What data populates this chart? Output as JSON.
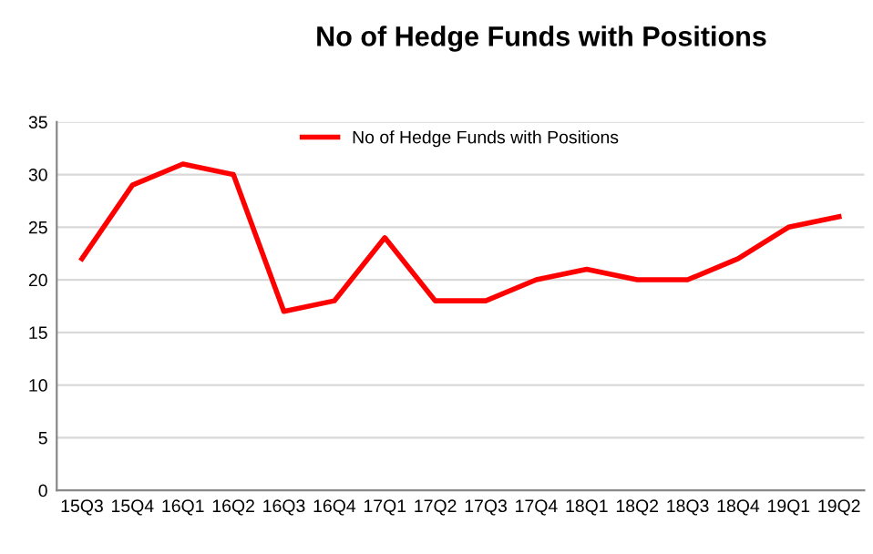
{
  "chart_data": {
    "type": "line",
    "title": "No of Hedge Funds with Positions",
    "categories": [
      "15Q3",
      "15Q4",
      "16Q1",
      "16Q2",
      "16Q3",
      "16Q4",
      "17Q1",
      "17Q2",
      "17Q3",
      "17Q4",
      "18Q1",
      "18Q2",
      "18Q3",
      "18Q4",
      "19Q1",
      "19Q2"
    ],
    "series": [
      {
        "name": "No of Hedge Funds with Positions",
        "color": "#ff0000",
        "values": [
          22,
          29,
          31,
          30,
          17,
          18,
          24,
          18,
          18,
          20,
          21,
          20,
          20,
          22,
          25,
          26
        ]
      }
    ],
    "ylim": [
      0,
      35
    ],
    "yticks": [
      0,
      5,
      10,
      15,
      20,
      25,
      30,
      35
    ],
    "grid": "y",
    "legend": "top",
    "marker": "none",
    "line_style": "solid"
  }
}
